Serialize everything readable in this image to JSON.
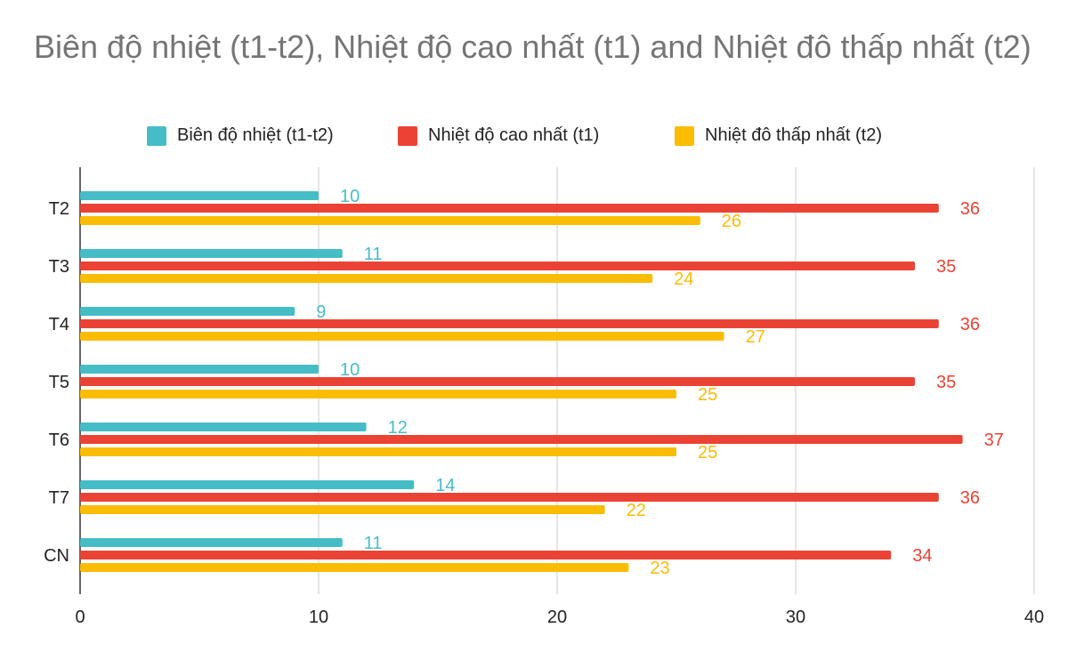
{
  "chart_data": {
    "type": "bar",
    "orientation": "horizontal",
    "title": "Biên độ nhiệt (t1-t2), Nhiệt độ cao nhất  (t1) and Nhiệt đô thấp nhất (t2)",
    "categories": [
      "T2",
      "T3",
      "T4",
      "T5",
      "T6",
      "T7",
      "CN"
    ],
    "series": [
      {
        "name": "Biên độ nhiệt (t1-t2)",
        "color": "#46BDC6",
        "values": [
          10,
          11,
          9,
          10,
          12,
          14,
          11
        ]
      },
      {
        "name": "Nhiệt độ cao nhất  (t1)",
        "color": "#EA4335",
        "values": [
          36,
          35,
          36,
          35,
          37,
          36,
          34
        ]
      },
      {
        "name": "Nhiệt đô thấp nhất (t2)",
        "color": "#FBBC04",
        "values": [
          26,
          24,
          27,
          25,
          25,
          22,
          23
        ]
      }
    ],
    "xlim": [
      0,
      40
    ],
    "xticks": [
      "0",
      "10",
      "20",
      "30",
      "40"
    ],
    "grid": true,
    "legend_position": "top",
    "data_labels": true
  }
}
